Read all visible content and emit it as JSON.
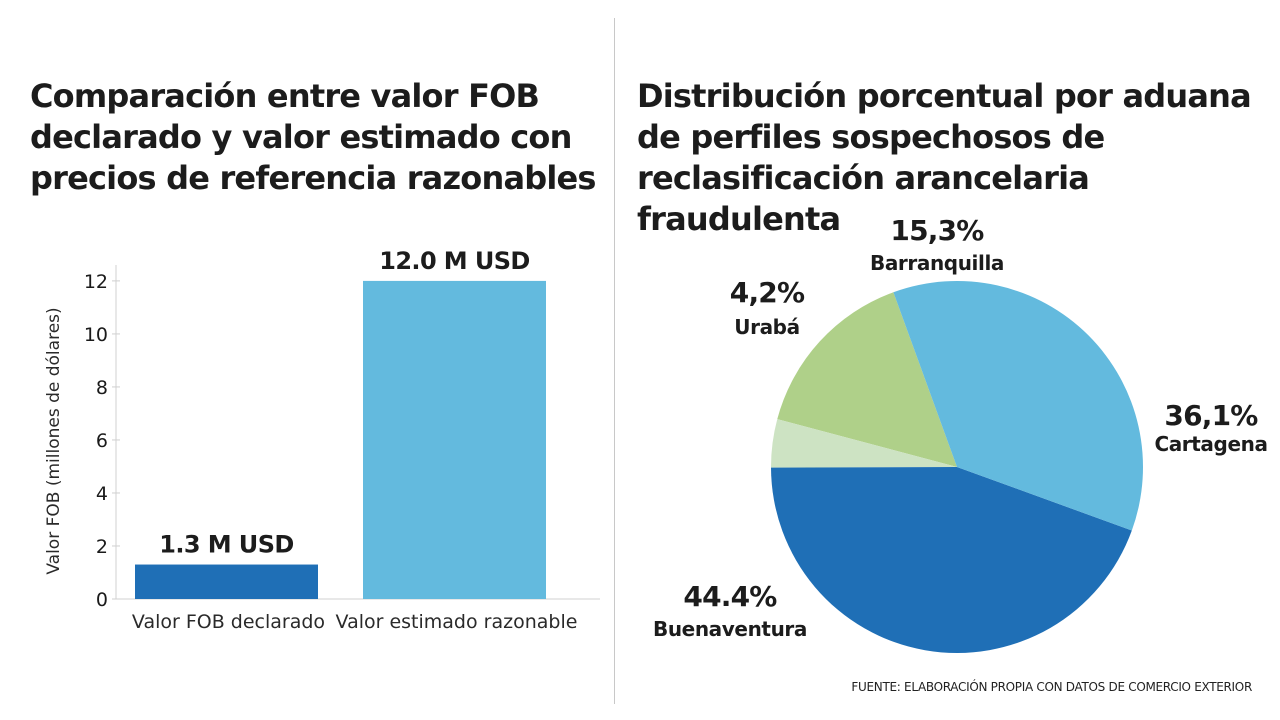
{
  "chart_data": [
    {
      "type": "bar",
      "title": "Comparación entre valor FOB declarado y valor estimado con precios de referencia razonables",
      "xlabel": "",
      "ylabel": "Valor FOB (millones de dólares)",
      "ylim": [
        0,
        12.6
      ],
      "yticks": [
        0,
        2,
        4,
        6,
        8,
        10,
        12
      ],
      "grid": false,
      "categories": [
        "Valor FOB declarado",
        "Valor estimado razonable"
      ],
      "values": [
        1.3,
        12.0
      ],
      "data_labels": [
        "1.3 M USD",
        "12.0 M USD"
      ],
      "colors": [
        "#1f6fb6",
        "#63bade"
      ]
    },
    {
      "type": "pie",
      "title": "Distribución porcentual por aduana de perfiles sospechosos de reclasificación arancelaria fraudulenta",
      "start_angle_deg": -20,
      "direction": "counterclockwise",
      "slices": [
        {
          "name": "Barranquilla",
          "value": 15.3,
          "label": "15,3%",
          "color": "#afd089"
        },
        {
          "name": "Urabá",
          "value": 4.2,
          "label": "4,2%",
          "color": "#cde3c3"
        },
        {
          "name": "Buenaventura",
          "value": 44.4,
          "label": "44.4%",
          "color": "#1f6fb6"
        },
        {
          "name": "Cartagena",
          "value": 36.1,
          "label": "36,1%",
          "color": "#63bade"
        }
      ]
    }
  ],
  "source": "FUENTE: ELABORACIÓN PROPIA CON DATOS DE COMERCIO EXTERIOR"
}
